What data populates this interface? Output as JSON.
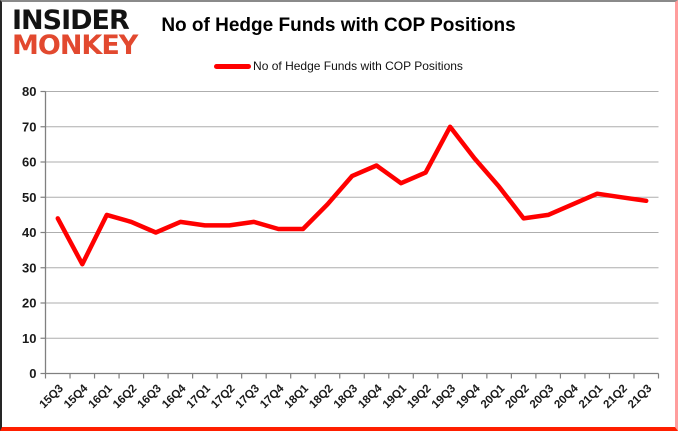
{
  "logo": {
    "line1": "INSIDER",
    "line2": "MONKEY"
  },
  "title": "No of Hedge Funds with COP Positions",
  "legend": {
    "label": "No of Hedge Funds with COP Positions",
    "line_color": "#ff0000"
  },
  "colors": {
    "series_line": "#ff0000",
    "gridline": "#aeaeae",
    "axis": "#808080",
    "tick_label": "#1a1a1a",
    "logo_red": "#e2492f"
  },
  "chart_data": {
    "type": "line",
    "title": "No of Hedge Funds with COP Positions",
    "categories": [
      "15Q3",
      "15Q4",
      "16Q1",
      "16Q2",
      "16Q3",
      "16Q4",
      "17Q1",
      "17Q2",
      "17Q3",
      "17Q4",
      "18Q1",
      "18Q2",
      "18Q3",
      "18Q4",
      "19Q1",
      "19Q2",
      "19Q3",
      "19Q4",
      "20Q1",
      "20Q2",
      "20Q3",
      "20Q4",
      "21Q1",
      "21Q2",
      "21Q3"
    ],
    "series": [
      {
        "name": "No of Hedge Funds with COP Positions",
        "values": [
          44,
          31,
          45,
          43,
          40,
          43,
          42,
          42,
          43,
          41,
          41,
          48,
          56,
          59,
          54,
          57,
          70,
          61,
          53,
          44,
          45,
          48,
          51,
          50,
          49
        ]
      }
    ],
    "xlabel": "",
    "ylabel": "",
    "ylim": [
      0,
      80
    ],
    "ytick_interval": 10,
    "yticks": [
      0,
      10,
      20,
      30,
      40,
      50,
      60,
      70,
      80
    ],
    "grid": true,
    "legend_position": "top-center",
    "line_color": "#ff0000"
  }
}
